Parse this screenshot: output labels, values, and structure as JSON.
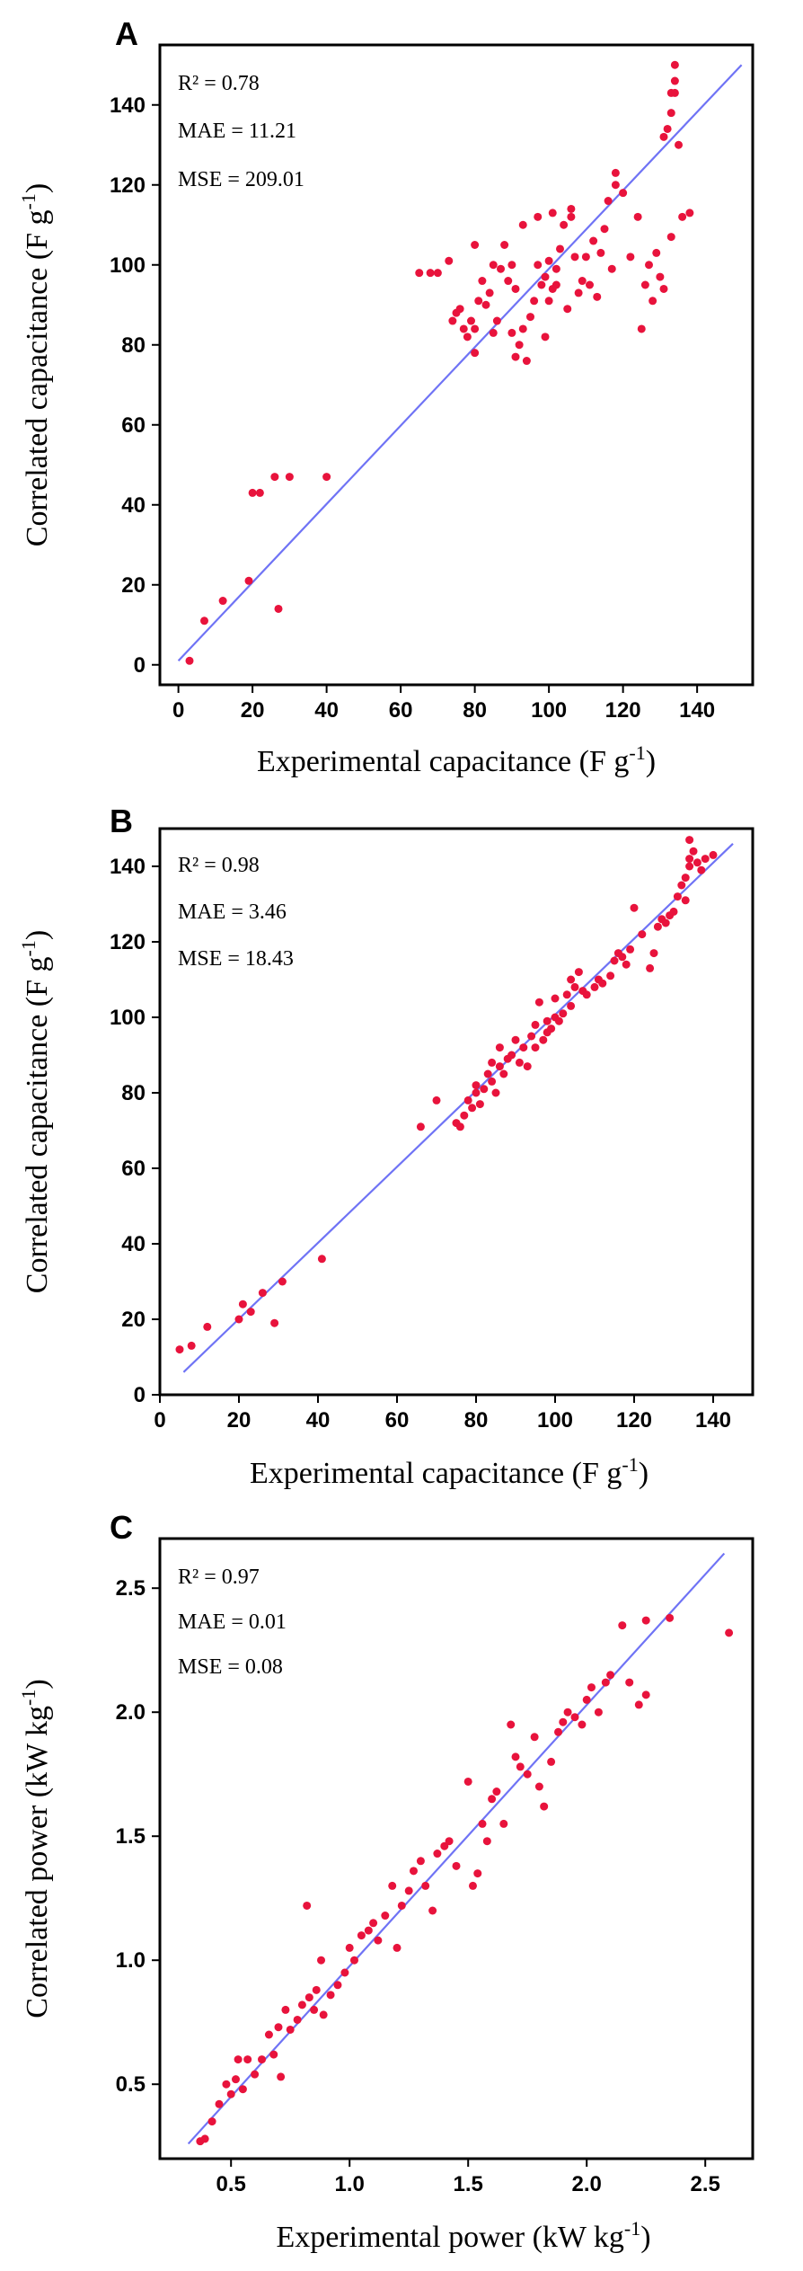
{
  "colors": {
    "point": "#e8133c",
    "fit": "#6f73f5",
    "axis": "#000000"
  },
  "chart_data": [
    {
      "panel_label": "A",
      "type": "scatter",
      "xlabel": "Experimental capacitance (F g-1)",
      "ylabel": "Correlated capacitance (F g-1)",
      "xlabel_main": "Experimental capacitance (F g",
      "ylabel_main": "Correlated capacitance (F g",
      "unit_sup": "-1",
      "xlim": [
        -5,
        155
      ],
      "ylim": [
        -5,
        155
      ],
      "xticks": [
        0,
        20,
        40,
        60,
        80,
        100,
        120,
        140
      ],
      "yticks": [
        0,
        20,
        40,
        60,
        80,
        100,
        120,
        140
      ],
      "tick_labels_x": [
        "0",
        "20",
        "40",
        "60",
        "80",
        "100",
        "120",
        "140"
      ],
      "tick_labels_y": [
        "0",
        "20",
        "40",
        "60",
        "80",
        "100",
        "120",
        "140"
      ],
      "fit_line": [
        [
          0,
          1
        ],
        [
          152,
          150
        ]
      ],
      "stats": {
        "r2": "R² = 0.78",
        "mae": "MAE = 11.21",
        "mse": "MSE = 209.01"
      },
      "points": [
        [
          3,
          1
        ],
        [
          7,
          11
        ],
        [
          12,
          16
        ],
        [
          19,
          21
        ],
        [
          20,
          43
        ],
        [
          22,
          43
        ],
        [
          26,
          47
        ],
        [
          27,
          14
        ],
        [
          30,
          47
        ],
        [
          40,
          47
        ],
        [
          65,
          98
        ],
        [
          68,
          98
        ],
        [
          70,
          98
        ],
        [
          73,
          101
        ],
        [
          74,
          86
        ],
        [
          75,
          88
        ],
        [
          76,
          89
        ],
        [
          77,
          84
        ],
        [
          78,
          82
        ],
        [
          79,
          86
        ],
        [
          80,
          78
        ],
        [
          80,
          84
        ],
        [
          80,
          105
        ],
        [
          81,
          91
        ],
        [
          82,
          96
        ],
        [
          83,
          90
        ],
        [
          84,
          93
        ],
        [
          85,
          100
        ],
        [
          85,
          83
        ],
        [
          86,
          86
        ],
        [
          87,
          99
        ],
        [
          88,
          105
        ],
        [
          89,
          96
        ],
        [
          90,
          100
        ],
        [
          90,
          83
        ],
        [
          91,
          94
        ],
        [
          91,
          77
        ],
        [
          92,
          80
        ],
        [
          93,
          84
        ],
        [
          93,
          110
        ],
        [
          94,
          76
        ],
        [
          95,
          87
        ],
        [
          96,
          91
        ],
        [
          97,
          100
        ],
        [
          97,
          112
        ],
        [
          98,
          95
        ],
        [
          99,
          97
        ],
        [
          99,
          82
        ],
        [
          100,
          91
        ],
        [
          100,
          101
        ],
        [
          101,
          94
        ],
        [
          101,
          113
        ],
        [
          102,
          95
        ],
        [
          102,
          99
        ],
        [
          103,
          104
        ],
        [
          104,
          110
        ],
        [
          105,
          89
        ],
        [
          106,
          112
        ],
        [
          106,
          114
        ],
        [
          107,
          102
        ],
        [
          108,
          93
        ],
        [
          109,
          96
        ],
        [
          110,
          102
        ],
        [
          111,
          95
        ],
        [
          112,
          106
        ],
        [
          113,
          92
        ],
        [
          114,
          103
        ],
        [
          115,
          109
        ],
        [
          116,
          116
        ],
        [
          117,
          99
        ],
        [
          118,
          120
        ],
        [
          118,
          123
        ],
        [
          120,
          118
        ],
        [
          122,
          102
        ],
        [
          124,
          112
        ],
        [
          125,
          84
        ],
        [
          126,
          95
        ],
        [
          127,
          100
        ],
        [
          128,
          91
        ],
        [
          129,
          103
        ],
        [
          130,
          97
        ],
        [
          131,
          94
        ],
        [
          131,
          132
        ],
        [
          132,
          134
        ],
        [
          133,
          138
        ],
        [
          133,
          143
        ],
        [
          133,
          107
        ],
        [
          134,
          150
        ],
        [
          134,
          146
        ],
        [
          134,
          143
        ],
        [
          135,
          130
        ],
        [
          136,
          112
        ],
        [
          138,
          113
        ]
      ]
    },
    {
      "panel_label": "B",
      "type": "scatter",
      "xlabel": "Experimental capacitance (F g-1)",
      "ylabel": "Correlated capacitance (F g-1)",
      "xlabel_main": "Experimental capacitance (F g",
      "ylabel_main": "Correlated capacitance (F g",
      "unit_sup": "-1",
      "xlim": [
        0,
        150
      ],
      "ylim": [
        0,
        150
      ],
      "xticks": [
        0,
        20,
        40,
        60,
        80,
        100,
        120,
        140
      ],
      "yticks": [
        0,
        20,
        40,
        60,
        80,
        100,
        120,
        140
      ],
      "tick_labels_x": [
        "0",
        "20",
        "40",
        "60",
        "80",
        "100",
        "120",
        "140"
      ],
      "tick_labels_y": [
        "0",
        "20",
        "40",
        "60",
        "80",
        "100",
        "120",
        "140"
      ],
      "fit_line": [
        [
          6,
          6
        ],
        [
          145,
          146
        ]
      ],
      "stats": {
        "r2": "R² = 0.98",
        "mae": "MAE = 3.46",
        "mse": "MSE = 18.43"
      },
      "points": [
        [
          5,
          12
        ],
        [
          8,
          13
        ],
        [
          12,
          18
        ],
        [
          20,
          20
        ],
        [
          21,
          24
        ],
        [
          23,
          22
        ],
        [
          26,
          27
        ],
        [
          29,
          19
        ],
        [
          31,
          30
        ],
        [
          41,
          36
        ],
        [
          66,
          71
        ],
        [
          70,
          78
        ],
        [
          75,
          72
        ],
        [
          76,
          71
        ],
        [
          77,
          74
        ],
        [
          78,
          78
        ],
        [
          79,
          76
        ],
        [
          80,
          80
        ],
        [
          80,
          82
        ],
        [
          81,
          77
        ],
        [
          82,
          81
        ],
        [
          83,
          85
        ],
        [
          84,
          83
        ],
        [
          84,
          88
        ],
        [
          85,
          80
        ],
        [
          86,
          87
        ],
        [
          86,
          92
        ],
        [
          87,
          85
        ],
        [
          88,
          89
        ],
        [
          89,
          90
        ],
        [
          90,
          94
        ],
        [
          91,
          88
        ],
        [
          92,
          92
        ],
        [
          93,
          87
        ],
        [
          94,
          95
        ],
        [
          95,
          98
        ],
        [
          95,
          92
        ],
        [
          96,
          104
        ],
        [
          97,
          94
        ],
        [
          98,
          96
        ],
        [
          98,
          99
        ],
        [
          99,
          97
        ],
        [
          100,
          100
        ],
        [
          100,
          105
        ],
        [
          101,
          99
        ],
        [
          102,
          101
        ],
        [
          103,
          106
        ],
        [
          104,
          110
        ],
        [
          104,
          103
        ],
        [
          105,
          108
        ],
        [
          106,
          112
        ],
        [
          107,
          107
        ],
        [
          108,
          106
        ],
        [
          110,
          108
        ],
        [
          111,
          110
        ],
        [
          112,
          109
        ],
        [
          114,
          111
        ],
        [
          115,
          115
        ],
        [
          116,
          117
        ],
        [
          117,
          116
        ],
        [
          118,
          114
        ],
        [
          119,
          118
        ],
        [
          120,
          129
        ],
        [
          122,
          122
        ],
        [
          124,
          113
        ],
        [
          125,
          117
        ],
        [
          126,
          124
        ],
        [
          127,
          126
        ],
        [
          128,
          125
        ],
        [
          129,
          127
        ],
        [
          130,
          128
        ],
        [
          131,
          132
        ],
        [
          132,
          135
        ],
        [
          133,
          137
        ],
        [
          133,
          131
        ],
        [
          134,
          140
        ],
        [
          134,
          147
        ],
        [
          134,
          142
        ],
        [
          135,
          144
        ],
        [
          136,
          141
        ],
        [
          137,
          139
        ],
        [
          138,
          142
        ],
        [
          140,
          143
        ]
      ]
    },
    {
      "panel_label": "C",
      "type": "scatter",
      "xlabel": "Experimental power (kW kg-1)",
      "ylabel": "Correlated power (kW kg-1)",
      "xlabel_main": "Experimental power (kW kg",
      "ylabel_main": "Correlated power (kW kg",
      "unit_sup": "-1",
      "xlim": [
        0.2,
        2.7
      ],
      "ylim": [
        0.2,
        2.7
      ],
      "xticks": [
        0.5,
        1.0,
        1.5,
        2.0,
        2.5
      ],
      "yticks": [
        0.5,
        1.0,
        1.5,
        2.0,
        2.5
      ],
      "tick_labels_x": [
        "0.5",
        "1.0",
        "1.5",
        "2.0",
        "2.5"
      ],
      "tick_labels_y": [
        "0.5",
        "1.0",
        "1.5",
        "2.0",
        "2.5"
      ],
      "fit_line": [
        [
          0.32,
          0.26
        ],
        [
          2.58,
          2.64
        ]
      ],
      "stats": {
        "r2": "R² = 0.97",
        "mae": "MAE = 0.01",
        "mse": "MSE = 0.08"
      },
      "points": [
        [
          0.37,
          0.27
        ],
        [
          0.39,
          0.28
        ],
        [
          0.42,
          0.35
        ],
        [
          0.45,
          0.42
        ],
        [
          0.48,
          0.5
        ],
        [
          0.5,
          0.46
        ],
        [
          0.52,
          0.52
        ],
        [
          0.53,
          0.6
        ],
        [
          0.55,
          0.48
        ],
        [
          0.57,
          0.6
        ],
        [
          0.6,
          0.54
        ],
        [
          0.63,
          0.6
        ],
        [
          0.66,
          0.7
        ],
        [
          0.68,
          0.62
        ],
        [
          0.7,
          0.73
        ],
        [
          0.71,
          0.53
        ],
        [
          0.73,
          0.8
        ],
        [
          0.75,
          0.72
        ],
        [
          0.78,
          0.76
        ],
        [
          0.8,
          0.82
        ],
        [
          0.82,
          1.22
        ],
        [
          0.83,
          0.85
        ],
        [
          0.85,
          0.8
        ],
        [
          0.86,
          0.88
        ],
        [
          0.88,
          1.0
        ],
        [
          0.89,
          0.78
        ],
        [
          0.92,
          0.86
        ],
        [
          0.95,
          0.9
        ],
        [
          0.98,
          0.95
        ],
        [
          1.0,
          1.05
        ],
        [
          1.02,
          1.0
        ],
        [
          1.05,
          1.1
        ],
        [
          1.08,
          1.12
        ],
        [
          1.1,
          1.15
        ],
        [
          1.12,
          1.08
        ],
        [
          1.15,
          1.18
        ],
        [
          1.18,
          1.3
        ],
        [
          1.2,
          1.05
        ],
        [
          1.22,
          1.22
        ],
        [
          1.25,
          1.28
        ],
        [
          1.27,
          1.36
        ],
        [
          1.3,
          1.4
        ],
        [
          1.32,
          1.3
        ],
        [
          1.35,
          1.2
        ],
        [
          1.37,
          1.43
        ],
        [
          1.4,
          1.46
        ],
        [
          1.42,
          1.48
        ],
        [
          1.45,
          1.38
        ],
        [
          1.5,
          1.72
        ],
        [
          1.52,
          1.3
        ],
        [
          1.54,
          1.35
        ],
        [
          1.56,
          1.55
        ],
        [
          1.58,
          1.48
        ],
        [
          1.6,
          1.65
        ],
        [
          1.62,
          1.68
        ],
        [
          1.65,
          1.55
        ],
        [
          1.68,
          1.95
        ],
        [
          1.7,
          1.82
        ],
        [
          1.72,
          1.78
        ],
        [
          1.75,
          1.75
        ],
        [
          1.78,
          1.9
        ],
        [
          1.8,
          1.7
        ],
        [
          1.82,
          1.62
        ],
        [
          1.85,
          1.8
        ],
        [
          1.88,
          1.92
        ],
        [
          1.9,
          1.96
        ],
        [
          1.92,
          2.0
        ],
        [
          1.95,
          1.98
        ],
        [
          1.98,
          1.95
        ],
        [
          2.0,
          2.05
        ],
        [
          2.02,
          2.1
        ],
        [
          2.05,
          2.0
        ],
        [
          2.08,
          2.12
        ],
        [
          2.1,
          2.15
        ],
        [
          2.15,
          2.35
        ],
        [
          2.18,
          2.12
        ],
        [
          2.22,
          2.03
        ],
        [
          2.25,
          2.07
        ],
        [
          2.25,
          2.37
        ],
        [
          2.35,
          2.38
        ],
        [
          2.6,
          2.32
        ]
      ]
    }
  ]
}
